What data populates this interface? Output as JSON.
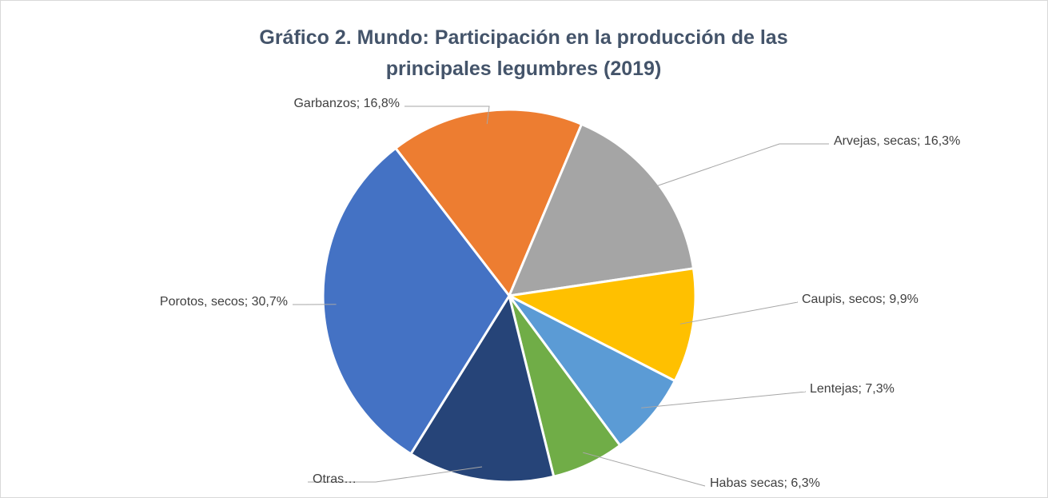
{
  "chart_data": {
    "type": "pie",
    "title": "Gráfico 2. Mundo: Participación en la producción de las principales legumbres (2019)",
    "values": [
      16.8,
      16.3,
      9.9,
      7.3,
      6.3,
      12.7,
      30.7
    ],
    "value_labels": [
      "Garbanzos; 16,8%",
      "Arvejas, secas; 16,3%",
      "Caupis, secos; 9,9%",
      "Lentejas; 7,3%",
      "Habas secas; 6,3%",
      "Otras…",
      "Porotos, secos; 30,7%"
    ],
    "colors": [
      "#ed7d31",
      "#a5a5a5",
      "#ffc000",
      "#5b9bd5",
      "#70ad47",
      "#264478",
      "#4472c4"
    ]
  }
}
